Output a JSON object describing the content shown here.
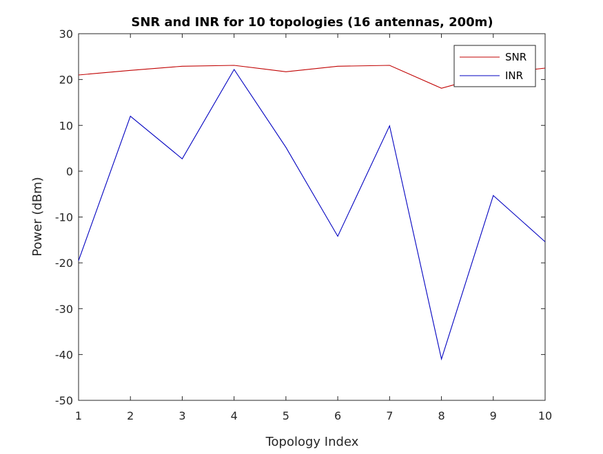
{
  "chart_data": {
    "type": "line",
    "title": "SNR and INR for 10 topologies (16 antennas, 200m)",
    "xlabel": "Topology Index",
    "ylabel": "Power (dBm)",
    "x": [
      1,
      2,
      3,
      4,
      5,
      6,
      7,
      8,
      9,
      10
    ],
    "xlim": [
      1,
      10
    ],
    "ylim": [
      -50,
      30
    ],
    "xticks": [
      1,
      2,
      3,
      4,
      5,
      6,
      7,
      8,
      9,
      10
    ],
    "yticks": [
      -50,
      -40,
      -30,
      -20,
      -10,
      0,
      10,
      20,
      30
    ],
    "grid": false,
    "legend_position": "top-right",
    "series": [
      {
        "name": "SNR",
        "color": "#c00000",
        "values": [
          21.0,
          22.0,
          22.9,
          23.1,
          21.7,
          22.9,
          23.1,
          18.1,
          21.2,
          22.5
        ]
      },
      {
        "name": "INR",
        "color": "#0000c0",
        "values": [
          -19.5,
          12.0,
          2.7,
          22.2,
          5.2,
          -14.2,
          9.9,
          -41.0,
          -5.3,
          -15.4
        ]
      }
    ]
  }
}
